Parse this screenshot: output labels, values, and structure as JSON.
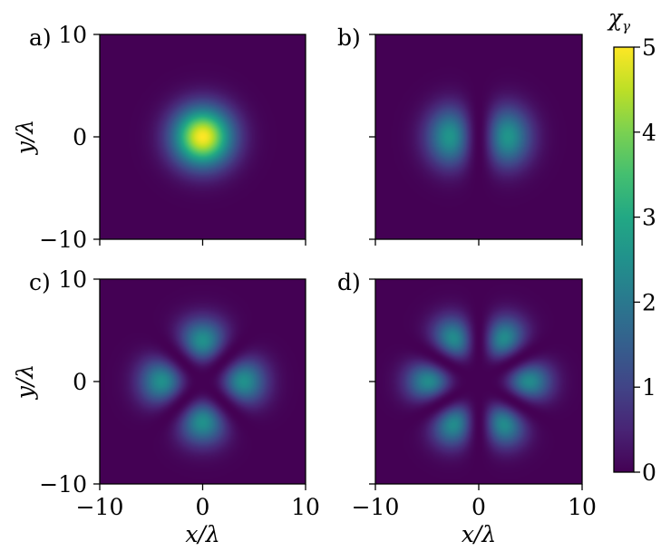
{
  "chart_data": {
    "type": "heatmap",
    "colormap": "viridis",
    "colorbar": {
      "label": "χ",
      "label_sub": "γ",
      "range": [
        0,
        5
      ],
      "ticks": [
        "0",
        "1",
        "2",
        "3",
        "4",
        "5"
      ]
    },
    "panels": [
      {
        "label": "a)",
        "mode": "gaussian",
        "peak": 5.0,
        "peak_position": [
          0,
          0
        ]
      },
      {
        "label": "b)",
        "mode": "two-lobe",
        "azimuthal_order": 1,
        "peak": 2.6,
        "peak_positions": [
          [
            -2.2,
            0
          ],
          [
            2.2,
            0
          ]
        ]
      },
      {
        "label": "c)",
        "mode": "four-lobe",
        "azimuthal_order": 2,
        "peak": 2.5,
        "peak_positions": [
          [
            0,
            3.2
          ],
          [
            0,
            -3.2
          ],
          [
            -3.2,
            0
          ],
          [
            3.2,
            0
          ]
        ]
      },
      {
        "label": "d)",
        "mode": "six-lobe",
        "azimuthal_order": 3,
        "peak": 2.4
      }
    ],
    "xlabel": "x/λ",
    "ylabel": "y/λ",
    "xlim": [
      -10,
      10
    ],
    "ylim": [
      -10,
      10
    ],
    "x_ticks": [
      "−10",
      "0",
      "10"
    ],
    "y_ticks": [
      "−10",
      "0",
      "10"
    ]
  }
}
